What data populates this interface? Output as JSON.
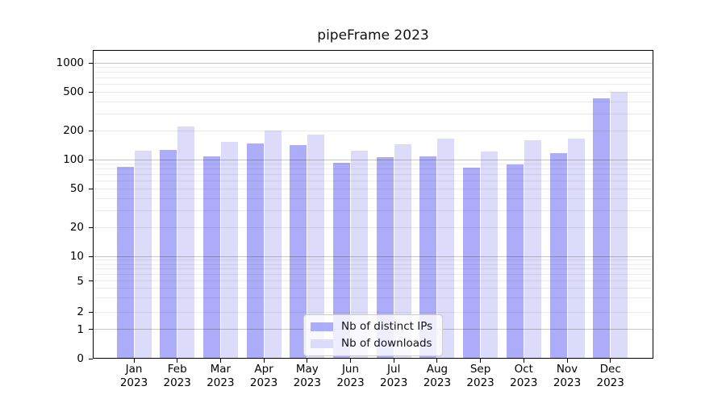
{
  "title": "pipeFrame 2023",
  "y_axis": {
    "tick_labels": [
      "0",
      "1",
      "2",
      "5",
      "10",
      "20",
      "50",
      "100",
      "200",
      "500",
      "1000"
    ]
  },
  "x_axis": {
    "month_line": [
      "Jan",
      "Feb",
      "Mar",
      "Apr",
      "May",
      "Jun",
      "Jul",
      "Aug",
      "Sep",
      "Oct",
      "Nov",
      "Dec"
    ],
    "year_line": "2023"
  },
  "legend": {
    "items": [
      {
        "label": "Nb of distinct IPs",
        "color": "#acacf8"
      },
      {
        "label": "Nb of downloads",
        "color": "#dcdbf9"
      }
    ]
  },
  "colors": {
    "bar_distinct_ips": "#acacf8",
    "bar_downloads": "#dcdbf9",
    "major_grid": "rgba(0,0,0,0.22)",
    "minor_grid": "rgba(0,0,0,0.07)",
    "spine": "#000000",
    "legend_border": "#cccccc",
    "background": "#ffffff"
  },
  "chart_data": {
    "type": "bar",
    "title": "pipeFrame 2023",
    "categories": [
      "Jan 2023",
      "Feb 2023",
      "Mar 2023",
      "Apr 2023",
      "May 2023",
      "Jun 2023",
      "Jul 2023",
      "Aug 2023",
      "Sep 2023",
      "Oct 2023",
      "Nov 2023",
      "Dec 2023"
    ],
    "series": [
      {
        "name": "Nb of distinct IPs",
        "values": [
          85,
          127,
          108,
          147,
          143,
          94,
          107,
          109,
          83,
          89,
          118,
          430
        ]
      },
      {
        "name": "Nb of downloads",
        "values": [
          124,
          220,
          152,
          199,
          181,
          124,
          144,
          166,
          121,
          158,
          166,
          500
        ]
      }
    ],
    "yscale": "symlog",
    "y_ticks": [
      0,
      1,
      2,
      5,
      10,
      20,
      50,
      100,
      200,
      500,
      1000
    ],
    "ylim": [
      0,
      1370
    ],
    "xlabel": "",
    "ylabel": "",
    "grid": true,
    "legend_position": "lower center"
  }
}
